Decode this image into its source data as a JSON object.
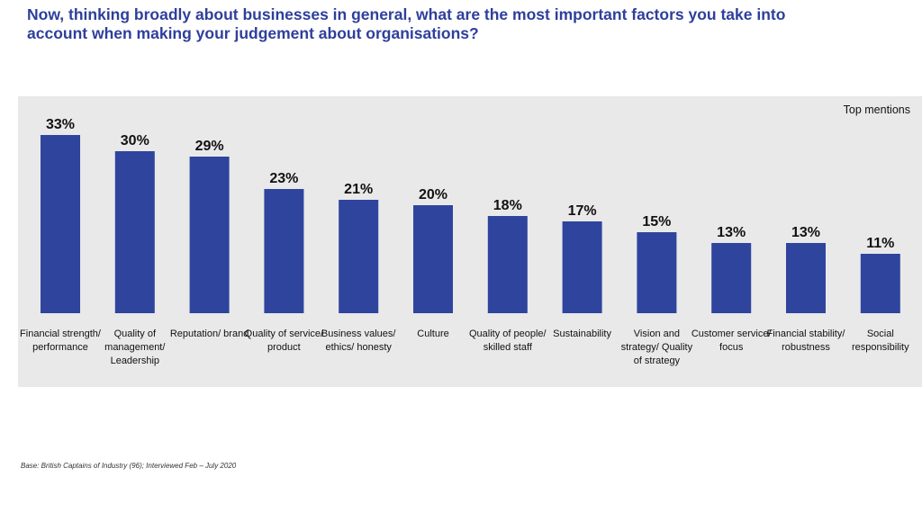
{
  "title": "Now, thinking broadly about businesses in general, what are the most important factors you take into account when making your judgement about organisations?",
  "badge": "Top mentions",
  "footnote": "Base: British Captains of Industry (96); Interviewed Feb – July 2020",
  "colors": {
    "bar": "#2f449d",
    "title": "#2e3f9b",
    "panel": "#e9e9ea"
  },
  "chart_data": {
    "type": "bar",
    "title": "",
    "xlabel": "",
    "ylabel": "",
    "ylim": [
      0,
      35
    ],
    "grid": false,
    "unit": "%",
    "categories": [
      "Financial strength/ performance",
      "Quality of management/ Leadership",
      "Reputation/ brand",
      "Quality of service/ product",
      "Business values/ ethics/ honesty",
      "Culture",
      "Quality of people/ skilled staff",
      "Sustainability",
      "Vision and strategy/ Quality of strategy",
      "Customer service/ focus",
      "Financial stability/ robustness",
      "Social responsibility"
    ],
    "values": [
      33,
      30,
      29,
      23,
      21,
      20,
      18,
      17,
      15,
      13,
      13,
      11
    ],
    "data_labels": [
      "33%",
      "30%",
      "29%",
      "23%",
      "21%",
      "20%",
      "18%",
      "17%",
      "15%",
      "13%",
      "13%",
      "11%"
    ]
  }
}
